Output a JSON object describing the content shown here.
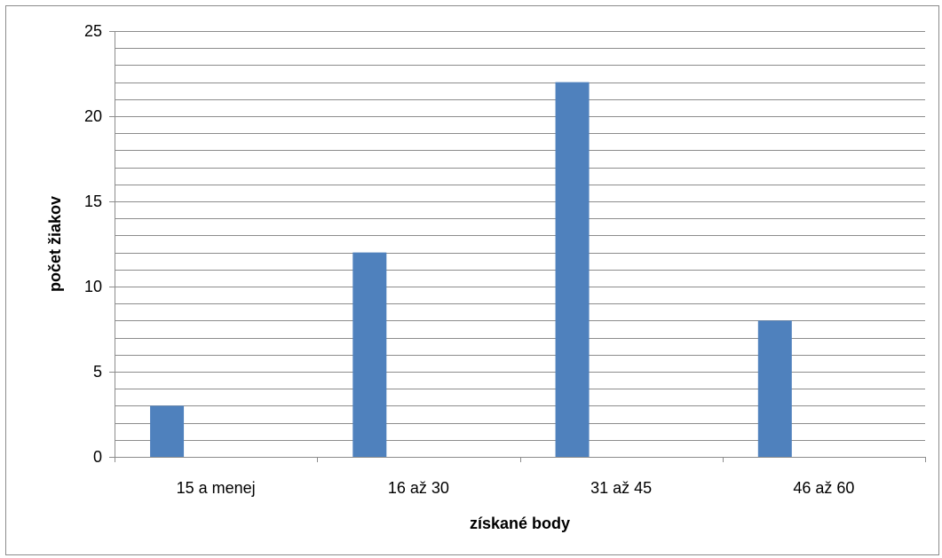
{
  "chart_data": {
    "type": "bar",
    "title": "",
    "xlabel": "získané body",
    "ylabel": "počet žiakov",
    "categories": [
      "15 a menej",
      "16 až 30",
      "31 až 45",
      "46 až 60"
    ],
    "series": [
      {
        "values": [
          3,
          12,
          22,
          8
        ]
      }
    ],
    "ylim": [
      0,
      25
    ],
    "major_ticks": [
      0,
      5,
      10,
      15,
      20,
      25
    ],
    "minor_tick_step": 1,
    "grid": true,
    "legend": false,
    "colors": {
      "bar": "#4f81bd",
      "grid": "#8c8c8c",
      "axis": "#8c8c8c"
    }
  }
}
